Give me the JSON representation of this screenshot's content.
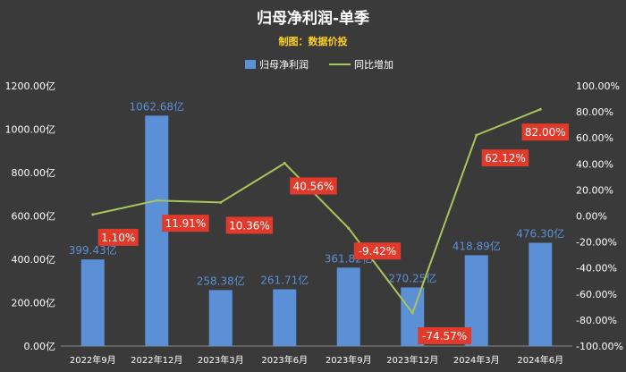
{
  "chart_data": {
    "type": "bar",
    "title": "归母净利润-单季",
    "subtitle": "制图：数据价投",
    "categories": [
      "2022年9月",
      "2022年12月",
      "2023年3月",
      "2023年6月",
      "2023年9月",
      "2023年12月",
      "2024年3月",
      "2024年6月"
    ],
    "series": [
      {
        "name": "归母净利润",
        "type": "bar",
        "axis": "left",
        "color": "#5b8fd6",
        "values": [
          399.43,
          1062.68,
          258.38,
          261.71,
          361.82,
          270.25,
          418.89,
          476.3
        ],
        "labels": [
          "399.43亿",
          "1062.68亿",
          "258.38亿",
          "261.71亿",
          "361.82亿",
          "270.25亿",
          "418.89亿",
          "476.30亿"
        ]
      },
      {
        "name": "同比增加",
        "type": "line",
        "axis": "right",
        "color": "#a9c45a",
        "values": [
          1.1,
          11.91,
          10.36,
          40.56,
          -9.42,
          -74.57,
          62.12,
          82.0
        ],
        "labels": [
          "1.10%",
          "11.91%",
          "10.36%",
          "40.56%",
          "-9.42%",
          "-74.57%",
          "62.12%",
          "82.00%"
        ]
      }
    ],
    "y_left": {
      "range": [
        0,
        1200
      ],
      "ticks": [
        "0.00亿",
        "200.00亿",
        "400.00亿",
        "600.00亿",
        "800.00亿",
        "1000.00亿",
        "1200.00亿"
      ]
    },
    "y_right": {
      "range": [
        -100,
        100
      ],
      "ticks": [
        "-100.00%",
        "-80.00%",
        "-60.00%",
        "-40.00%",
        "-20.00%",
        "0.00%",
        "20.00%",
        "40.00%",
        "60.00%",
        "80.00%",
        "100.00%"
      ]
    },
    "grid": false,
    "legend": "top-center",
    "colors": {
      "background": "#3a3a3a",
      "bar": "#5b8fd6",
      "line": "#a9c45a",
      "pct_box": "#e23a2a",
      "subtitle": "#ffd21f"
    }
  }
}
